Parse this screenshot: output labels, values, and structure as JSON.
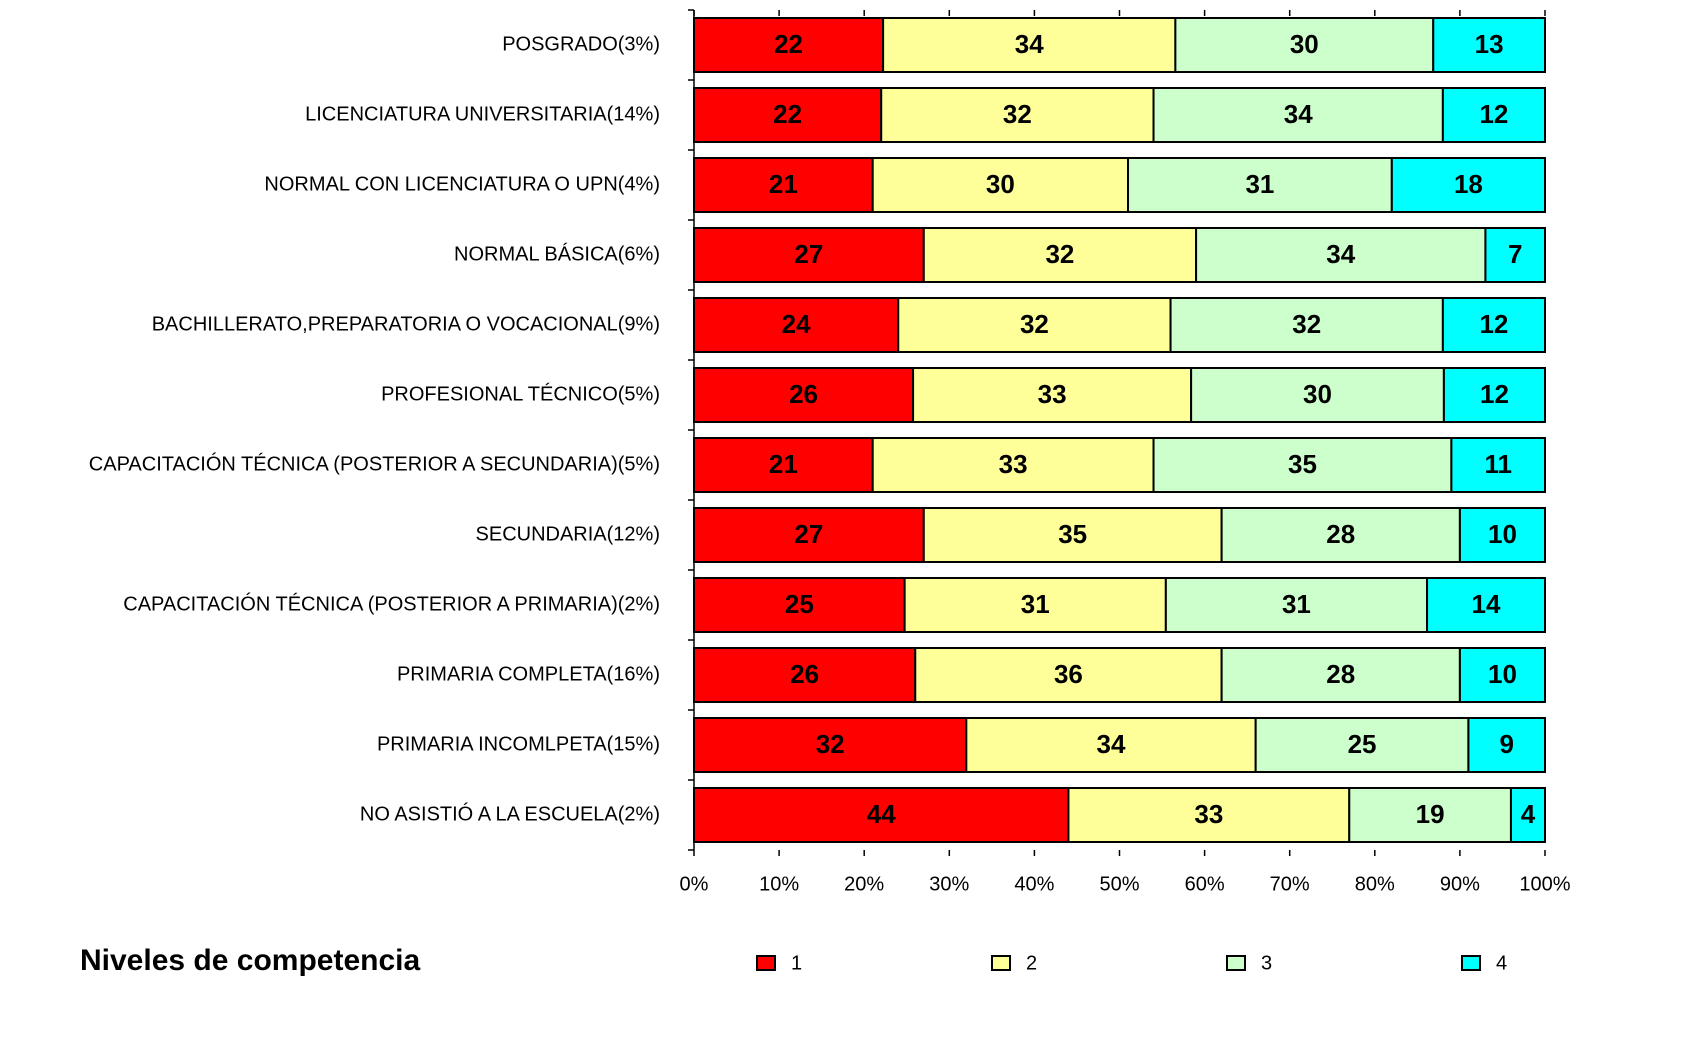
{
  "chart_data": {
    "type": "bar",
    "orientation": "horizontal",
    "stacked": "percent",
    "legend_title": "Niveles de competencia",
    "categories": [
      "POSGRADO(3%)",
      "LICENCIATURA UNIVERSITARIA(14%)",
      "NORMAL CON LICENCIATURA O UPN(4%)",
      "NORMAL BÁSICA(6%)",
      "BACHILLERATO,PREPARATORIA O VOCACIONAL(9%)",
      "PROFESIONAL TÉCNICO(5%)",
      "CAPACITACIÓN TÉCNICA (POSTERIOR A SECUNDARIA)(5%)",
      "SECUNDARIA(12%)",
      "CAPACITACIÓN TÉCNICA (POSTERIOR A PRIMARIA)(2%)",
      "PRIMARIA COMPLETA(16%)",
      "PRIMARIA INCOMLPETA(15%)",
      "NO ASISTIÓ A LA ESCUELA(2%)"
    ],
    "series": [
      {
        "name": "1",
        "color": "#ff0000",
        "values": [
          22,
          22,
          21,
          27,
          24,
          26,
          21,
          27,
          25,
          26,
          32,
          44
        ]
      },
      {
        "name": "2",
        "color": "#ffff99",
        "values": [
          34,
          32,
          30,
          32,
          32,
          33,
          33,
          35,
          31,
          36,
          34,
          33
        ]
      },
      {
        "name": "3",
        "color": "#ccffcc",
        "values": [
          30,
          34,
          31,
          34,
          32,
          30,
          35,
          28,
          31,
          28,
          25,
          19
        ]
      },
      {
        "name": "4",
        "color": "#00ffff",
        "values": [
          13,
          12,
          18,
          7,
          12,
          12,
          11,
          10,
          14,
          10,
          9,
          4
        ]
      }
    ],
    "xlim": [
      0,
      100
    ],
    "xticks": [
      {
        "value": 0,
        "label": "0%"
      },
      {
        "value": 10,
        "label": "10%"
      },
      {
        "value": 20,
        "label": "20%"
      },
      {
        "value": 30,
        "label": "30%"
      },
      {
        "value": 40,
        "label": "40%"
      },
      {
        "value": 50,
        "label": "50%"
      },
      {
        "value": 60,
        "label": "60%"
      },
      {
        "value": 70,
        "label": "70%"
      },
      {
        "value": 80,
        "label": "80%"
      },
      {
        "value": 90,
        "label": "90%"
      },
      {
        "value": 100,
        "label": "100%"
      }
    ],
    "legend": "bottom"
  }
}
